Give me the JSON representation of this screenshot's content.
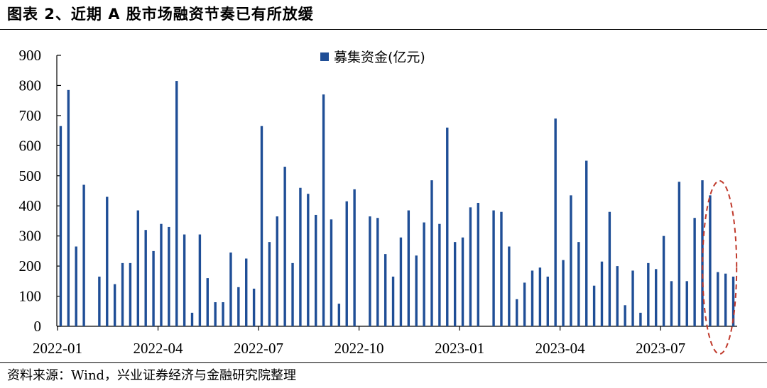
{
  "header": {
    "title": "图表 2、近期 A 股市场融资节奏已有所放缓"
  },
  "footer": {
    "source": "资料来源：Wind，兴业证券经济与金融研究院整理"
  },
  "colors": {
    "bar": "#1F4E96",
    "highlight": "#C0392B"
  },
  "chart_data": {
    "type": "bar",
    "series": [
      {
        "name": "募集资金(亿元)",
        "values": [
          665,
          785,
          265,
          470,
          0,
          165,
          430,
          140,
          210,
          210,
          385,
          320,
          250,
          340,
          330,
          815,
          305,
          45,
          305,
          160,
          80,
          80,
          245,
          130,
          225,
          125,
          665,
          280,
          365,
          530,
          210,
          460,
          440,
          370,
          770,
          355,
          75,
          415,
          455,
          0,
          365,
          360,
          240,
          165,
          295,
          385,
          235,
          345,
          485,
          340,
          660,
          280,
          295,
          395,
          410,
          0,
          385,
          380,
          265,
          90,
          145,
          185,
          195,
          165,
          690,
          220,
          435,
          280,
          550,
          135,
          215,
          380,
          200,
          70,
          185,
          45,
          210,
          190,
          300,
          150,
          480,
          150,
          360,
          485,
          435,
          180,
          175,
          165
        ]
      }
    ],
    "x_tick_labels": [
      "2022-01",
      "2022-04",
      "2022-07",
      "2022-10",
      "2023-01",
      "2023-04",
      "2023-07"
    ],
    "x_tick_index": [
      0,
      13,
      26,
      39,
      52,
      65,
      78
    ],
    "y_ticks": [
      0,
      100,
      200,
      300,
      400,
      500,
      600,
      700,
      800,
      900
    ],
    "ylim": [
      0,
      900
    ],
    "legend_position": "top-center",
    "highlight": {
      "shape": "dashed-ellipse",
      "covers_last_bars": 4
    }
  }
}
